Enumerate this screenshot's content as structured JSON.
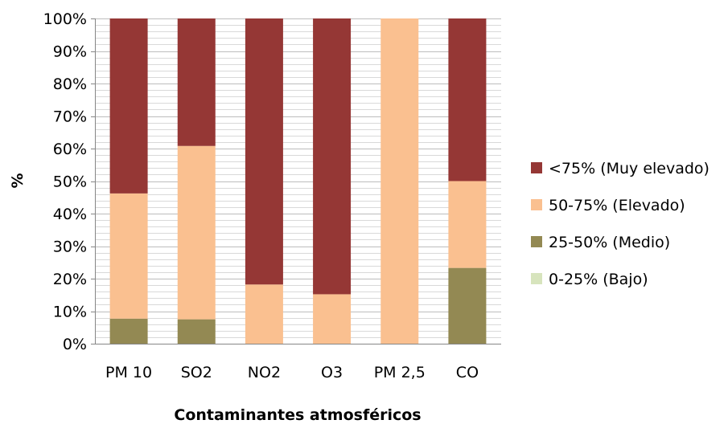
{
  "chart_data": {
    "type": "bar",
    "stacked": true,
    "percent_stacked": true,
    "categories": [
      "PM 10",
      "SO2",
      "NO2",
      "O3",
      "PM 2,5",
      "CO"
    ],
    "series": [
      {
        "name": "0-25% (Bajo)",
        "color": "#d7e4bd",
        "values": [
          0,
          0,
          0,
          0,
          0,
          0
        ]
      },
      {
        "name": "25-50% (Medio)",
        "color": "#938953",
        "values": [
          7.7,
          7.5,
          0,
          0,
          0,
          23.3
        ]
      },
      {
        "name": "50-75% (Elevado)",
        "color": "#fac090",
        "values": [
          38.5,
          53.3,
          18.2,
          15.2,
          100,
          26.7
        ]
      },
      {
        "name": "<75% (Muy elevado)",
        "color": "#953735",
        "values": [
          53.8,
          39.2,
          81.8,
          84.8,
          0,
          50.0
        ]
      }
    ],
    "legend_order": [
      "<75% (Muy elevado)",
      "50-75% (Elevado)",
      "25-50% (Medio)",
      "0-25% (Bajo)"
    ],
    "ylim": [
      0,
      100
    ],
    "yticks": [
      "0%",
      "10%",
      "20%",
      "30%",
      "40%",
      "50%",
      "60%",
      "70%",
      "80%",
      "90%",
      "100%"
    ],
    "ylabel": "%",
    "xlabel": "Contaminantes atmosféricos",
    "grid": true,
    "legend_position": "right"
  }
}
